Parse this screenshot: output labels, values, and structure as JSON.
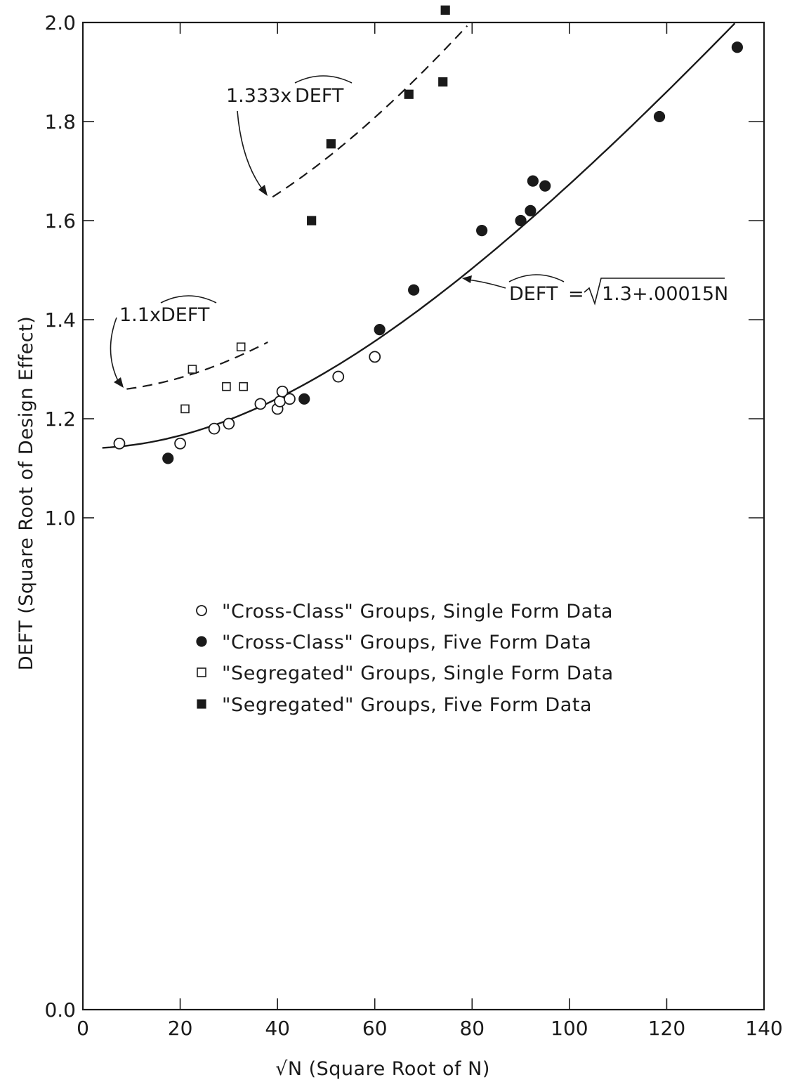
{
  "chart_data": {
    "type": "scatter",
    "xlabel": "√N (Square Root of N)",
    "ylabel": "DEFT (Square Root of Design Effect)",
    "xlim": [
      0,
      140
    ],
    "ylim": [
      0.0,
      2.0
    ],
    "y_axis_break": "axis runs 0.0 to 2.0 but the span between 0.0 and 1.0 is drawn compressed; ticks labeled 0.0, 1.0, 1.2, 1.4, 1.6, 1.8, 2.0",
    "x_ticks": [
      "0",
      "20",
      "40",
      "60",
      "80",
      "100",
      "120",
      "140"
    ],
    "x_tick_values": [
      0,
      20,
      40,
      60,
      80,
      100,
      120,
      140
    ],
    "y_ticks": [
      "0.0",
      "1.0",
      "1.2",
      "1.4",
      "1.6",
      "1.8",
      "2.0"
    ],
    "y_tick_values": [
      0.0,
      1.0,
      1.2,
      1.4,
      1.6,
      1.8,
      2.0
    ],
    "grid": false,
    "legend_position": "center",
    "series": [
      {
        "name": "\"Cross-Class\" Groups, Single Form Data",
        "marker": "open-circle",
        "points": [
          [
            7.5,
            1.15
          ],
          [
            20,
            1.15
          ],
          [
            27,
            1.18
          ],
          [
            30,
            1.19
          ],
          [
            36.5,
            1.23
          ],
          [
            40,
            1.22
          ],
          [
            40.5,
            1.235
          ],
          [
            41,
            1.255
          ],
          [
            42.5,
            1.24
          ],
          [
            52.5,
            1.285
          ],
          [
            60,
            1.325
          ]
        ]
      },
      {
        "name": "\"Cross-Class\" Groups, Five Form Data",
        "marker": "filled-circle",
        "points": [
          [
            17.5,
            1.12
          ],
          [
            45.5,
            1.24
          ],
          [
            61,
            1.38
          ],
          [
            68,
            1.46
          ],
          [
            82,
            1.58
          ],
          [
            90,
            1.6
          ],
          [
            92,
            1.62
          ],
          [
            92.5,
            1.68
          ],
          [
            95,
            1.67
          ],
          [
            118.5,
            1.81
          ],
          [
            134.5,
            1.95
          ]
        ]
      },
      {
        "name": "\"Segregated\" Groups, Single Form Data",
        "marker": "open-square",
        "points": [
          [
            21,
            1.22
          ],
          [
            22.5,
            1.3
          ],
          [
            29.5,
            1.265
          ],
          [
            32.5,
            1.345
          ],
          [
            33,
            1.265
          ]
        ]
      },
      {
        "name": "\"Segregated\" Groups, Five Form Data",
        "marker": "filled-square",
        "points": [
          [
            47,
            1.6
          ],
          [
            51,
            1.755
          ],
          [
            67,
            1.855
          ],
          [
            74,
            1.88
          ],
          [
            74.5,
            2.025
          ]
        ]
      }
    ],
    "curves": [
      {
        "style": "solid",
        "formula": "sqrt(1.3 + 0.00015 * x^2)",
        "x_range": [
          4,
          134
        ]
      },
      {
        "style": "dashed",
        "factor": 1.1,
        "formula": "1.1 * sqrt(1.3 + 0.00015 * x^2)",
        "x_range": [
          9,
          38
        ]
      },
      {
        "style": "dashed",
        "factor": 1.333,
        "formula": "1.333 * sqrt(1.3 + 0.00015 * x^2)",
        "x_range": [
          39,
          79
        ]
      }
    ],
    "annotations": {
      "deft_formula": {
        "hat": "DEFT",
        "rest": "=",
        "radicand": "1.3+.00015N"
      },
      "upper_band": {
        "prefix": "1.333x",
        "hat": "DEFT"
      },
      "lower_band": {
        "prefix": "1.1x",
        "hat": "DEFT"
      }
    }
  }
}
